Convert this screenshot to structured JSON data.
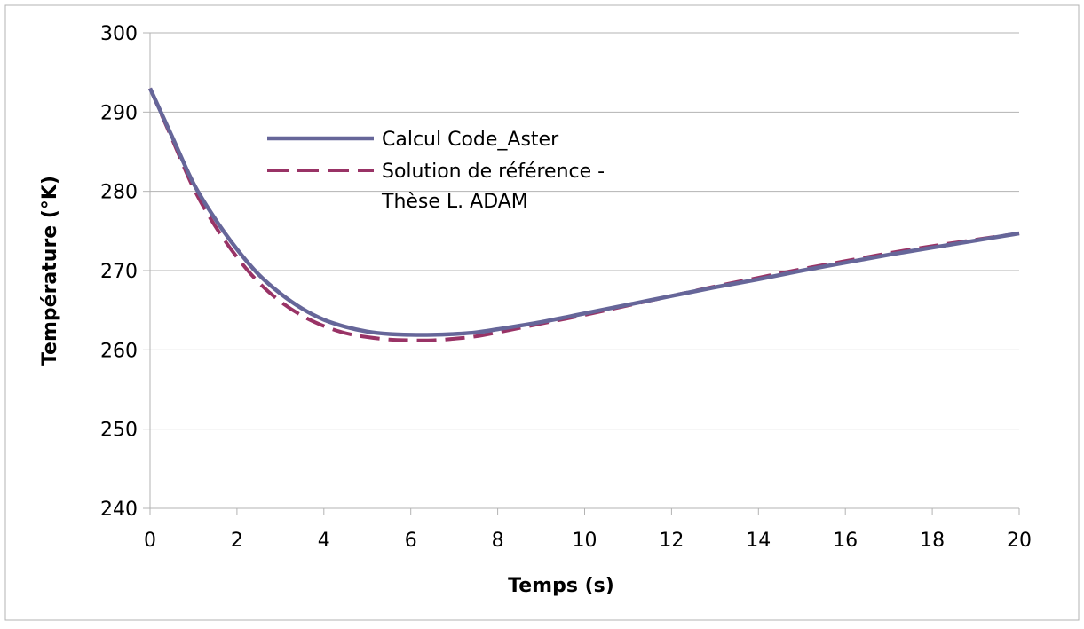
{
  "chart_data": {
    "type": "line",
    "title": "",
    "xlabel": "Temps (s)",
    "ylabel": "Température (°K)",
    "xlim": [
      0,
      20
    ],
    "ylim": [
      240,
      300
    ],
    "x_ticks": [
      0,
      2,
      4,
      6,
      8,
      10,
      12,
      14,
      16,
      18,
      20
    ],
    "y_ticks": [
      240,
      250,
      260,
      270,
      280,
      290,
      300
    ],
    "x_tick_labels": [
      "0",
      "2",
      "4",
      "6",
      "8",
      "10",
      "12",
      "14",
      "16",
      "18",
      "20"
    ],
    "y_tick_labels": [
      "240",
      "250",
      "260",
      "270",
      "280",
      "290",
      "300"
    ],
    "grid": {
      "horizontal": true,
      "vertical": false
    },
    "legend": {
      "placement": "upper-center-left"
    },
    "series": [
      {
        "name_lines": [
          "Calcul Code_Aster"
        ],
        "color": "#666699",
        "style": "solid",
        "x": [
          0,
          0.5,
          1,
          1.5,
          2,
          2.5,
          3,
          3.5,
          4,
          4.5,
          5,
          5.5,
          6,
          6.5,
          7,
          7.5,
          8,
          9,
          10,
          11,
          12,
          13,
          14,
          15,
          16,
          17,
          18,
          19,
          20
        ],
        "y": [
          293,
          287,
          281,
          276.5,
          272.7,
          269.5,
          267.1,
          265.2,
          263.8,
          262.9,
          262.3,
          262,
          261.9,
          261.9,
          262,
          262.2,
          262.6,
          263.5,
          264.6,
          265.7,
          266.8,
          267.9,
          268.9,
          270,
          271,
          272,
          272.9,
          273.8,
          274.7
        ]
      },
      {
        "name_lines": [
          "Solution de référence -",
          "Thèse L. ADAM"
        ],
        "color": "#993366",
        "style": "dashed",
        "x": [
          0,
          0.5,
          1,
          1.5,
          2,
          2.5,
          3,
          3.5,
          4,
          4.5,
          5,
          5.5,
          6,
          6.5,
          7,
          7.5,
          8,
          9,
          10,
          11,
          12,
          13,
          14,
          15,
          16,
          17,
          18,
          19,
          20
        ],
        "y": [
          293,
          286.7,
          280.4,
          275.6,
          271.7,
          268.5,
          266.1,
          264.3,
          263,
          262.1,
          261.6,
          261.3,
          261.2,
          261.2,
          261.4,
          261.7,
          262.2,
          263.3,
          264.4,
          265.6,
          266.8,
          268,
          269.1,
          270.2,
          271.2,
          272.2,
          273.1,
          273.9,
          274.7
        ]
      }
    ]
  }
}
